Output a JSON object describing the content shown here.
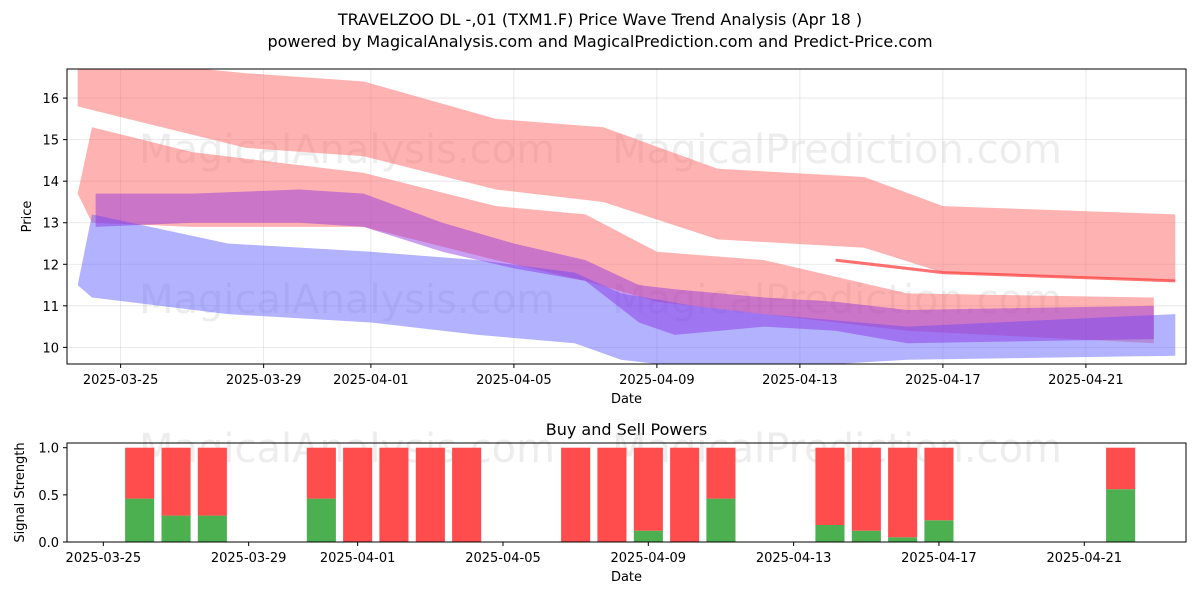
{
  "title_line1": "TRAVELZOO  DL -,01 (TXM1.F) Price Wave Trend Analysis (Apr 18 )",
  "title_line2": "powered by MagicalAnalysis.com and MagicalPrediction.com and Predict-Price.com",
  "watermarks": [
    "MagicalAnalysis.com",
    "MagicalPrediction.com"
  ],
  "chart_data": [
    {
      "type": "area",
      "title": "",
      "xlabel": "Date",
      "ylabel": "Price",
      "ylim": [
        9.6,
        16.7
      ],
      "yticks": [
        10,
        11,
        12,
        13,
        14,
        15,
        16
      ],
      "xlim": [
        "2025-03-23.5",
        "2025-04-23.8"
      ],
      "xticks": [
        "2025-03-25",
        "2025-03-29",
        "2025-04-01",
        "2025-04-05",
        "2025-04-09",
        "2025-04-13",
        "2025-04-17",
        "2025-04-21"
      ],
      "colors": {
        "red_band": "#ff6666",
        "blue_band": "#6666ff",
        "purple": "#8a2be2",
        "red_line": "#ff3333"
      },
      "series": [
        {
          "name": "red-upper-band",
          "color": "red",
          "alpha": 0.5,
          "x": [
            "2025-03-23.8",
            "2025-03-28.5",
            "2025-03-31.8",
            "2025-04-04.5",
            "2025-04-07.5",
            "2025-04-10.7",
            "2025-04-14.8",
            "2025-04-17",
            "2025-04-23.5"
          ],
          "upper": [
            17.0,
            16.6,
            16.4,
            15.5,
            15.3,
            14.3,
            14.1,
            13.4,
            13.2
          ],
          "lower": [
            15.8,
            14.8,
            14.6,
            13.8,
            13.5,
            12.6,
            12.4,
            11.8,
            11.6
          ]
        },
        {
          "name": "red-middle-band",
          "color": "red",
          "alpha": 0.5,
          "x": [
            "2025-03-23.8",
            "2025-03-24.2",
            "2025-03-27",
            "2025-03-31.8",
            "2025-04-04.5",
            "2025-04-07",
            "2025-04-09",
            "2025-04-12",
            "2025-04-16",
            "2025-04-22.9"
          ],
          "upper": [
            13.7,
            15.3,
            14.7,
            14.2,
            13.4,
            13.2,
            12.3,
            12.1,
            11.3,
            11.2
          ],
          "lower": [
            13.7,
            13.0,
            12.9,
            12.9,
            12.1,
            11.6,
            11.1,
            10.8,
            10.4,
            10.1
          ]
        },
        {
          "name": "blue-lower-band",
          "color": "blue",
          "alpha": 0.5,
          "x": [
            "2025-03-23.8",
            "2025-03-24.2",
            "2025-03-28",
            "2025-04-01",
            "2025-04-04",
            "2025-04-06.7",
            "2025-04-08",
            "2025-04-10",
            "2025-04-12",
            "2025-04-16",
            "2025-04-23.5"
          ],
          "upper": [
            11.5,
            13.2,
            12.5,
            12.3,
            12.1,
            11.8,
            11.3,
            11.0,
            10.8,
            10.5,
            10.8
          ],
          "lower": [
            11.5,
            11.2,
            10.8,
            10.6,
            10.3,
            10.1,
            9.7,
            9.5,
            9.5,
            9.7,
            9.8
          ]
        },
        {
          "name": "purple-core-band",
          "color": "purple",
          "alpha": 0.45,
          "x": [
            "2025-03-24.3",
            "2025-03-27",
            "2025-03-30",
            "2025-03-31.8",
            "2025-04-03",
            "2025-04-05",
            "2025-04-07",
            "2025-04-08.5",
            "2025-04-09.5",
            "2025-04-12",
            "2025-04-14",
            "2025-04-16",
            "2025-04-22.9"
          ],
          "upper": [
            13.7,
            13.7,
            13.8,
            13.7,
            13.0,
            12.5,
            12.1,
            11.5,
            11.4,
            11.2,
            11.1,
            10.9,
            11.0
          ],
          "lower": [
            12.9,
            13.0,
            13.0,
            12.9,
            12.3,
            11.9,
            11.6,
            10.6,
            10.3,
            10.5,
            10.4,
            10.1,
            10.2
          ]
        },
        {
          "name": "red-trend-line",
          "color": "red_line",
          "alpha": 0.7,
          "x": [
            "2025-04-14",
            "2025-04-17",
            "2025-04-23.5"
          ],
          "y": [
            12.1,
            11.8,
            11.6
          ]
        }
      ]
    },
    {
      "type": "bar",
      "title": "Buy and Sell Powers",
      "xlabel": "Date",
      "ylabel": "Signal Strength",
      "ylim": [
        0,
        1.05
      ],
      "yticks": [
        "0.0",
        "0.5",
        "1.0"
      ],
      "xlim": [
        "2025-03-24.0",
        "2025-04-23.8"
      ],
      "xticks": [
        "2025-03-25",
        "2025-03-29",
        "2025-04-01",
        "2025-04-05",
        "2025-04-09",
        "2025-04-13",
        "2025-04-17",
        "2025-04-21"
      ],
      "colors": {
        "buy": "#4caf50",
        "sell": "#ff4d4d"
      },
      "categories": [
        "2025-03-26",
        "2025-03-27",
        "2025-03-28",
        "2025-03-31",
        "2025-04-01",
        "2025-04-02",
        "2025-04-03",
        "2025-04-04",
        "2025-04-07",
        "2025-04-08",
        "2025-04-09",
        "2025-04-10",
        "2025-04-11",
        "2025-04-14",
        "2025-04-15",
        "2025-04-16",
        "2025-04-17",
        "2025-04-22"
      ],
      "series": [
        {
          "name": "Buy",
          "values": [
            0.46,
            0.28,
            0.28,
            0.46,
            0.0,
            0.0,
            0.0,
            0.0,
            0.0,
            0.0,
            0.12,
            0.0,
            0.46,
            0.18,
            0.12,
            0.05,
            0.23,
            0.56
          ]
        },
        {
          "name": "Sell",
          "values": [
            0.54,
            0.72,
            0.72,
            0.54,
            1.0,
            1.0,
            1.0,
            1.0,
            1.0,
            1.0,
            0.88,
            1.0,
            0.54,
            0.82,
            0.88,
            0.95,
            0.77,
            0.44
          ]
        }
      ]
    }
  ]
}
